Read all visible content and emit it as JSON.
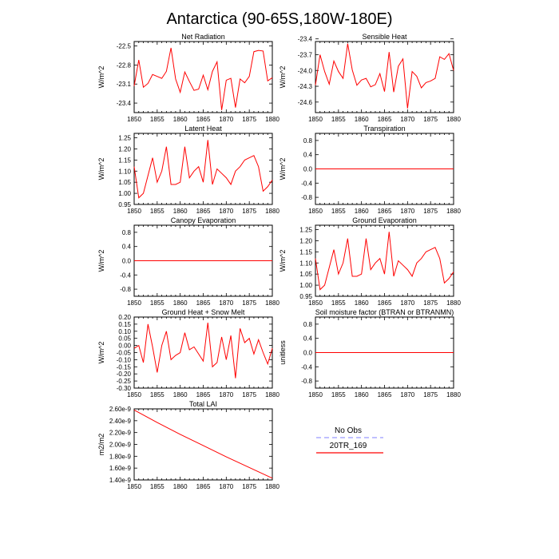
{
  "figure": {
    "title": "Antarctica (90-65S,180W-180E)"
  },
  "legend": {
    "entries": [
      {
        "label": "No Obs",
        "color": "#9a9aff",
        "style": "dashed"
      },
      {
        "label": "20TR_169",
        "color": "#ff0000",
        "style": "solid"
      }
    ]
  },
  "colors": {
    "series": "#ff0000",
    "axes": "#000000"
  },
  "chart_data": [
    {
      "type": "line",
      "title": "Net Radiation",
      "ylabel": "W/m^2",
      "xlim": [
        1850,
        1880
      ],
      "ylim": [
        -23.55,
        -22.43
      ],
      "xticks": [
        "1850",
        "1855",
        "1860",
        "1865",
        "1870",
        "1875",
        "1880"
      ],
      "yticks": [
        -22.5,
        -22.8,
        -23.1,
        -23.4
      ],
      "ytick_labels": [
        "-22.5",
        "-22.8",
        "-23.1",
        "-23.4"
      ],
      "x": [
        1850,
        1851,
        1852,
        1853,
        1854,
        1855,
        1856,
        1857,
        1858,
        1859,
        1860,
        1861,
        1862,
        1863,
        1864,
        1865,
        1866,
        1867,
        1868,
        1869,
        1870,
        1871,
        1872,
        1873,
        1874,
        1875,
        1876,
        1877,
        1878,
        1879,
        1880
      ],
      "series": [
        {
          "values": [
            -23.13,
            -22.72,
            -23.15,
            -23.09,
            -22.95,
            -22.98,
            -23.01,
            -22.9,
            -22.53,
            -23.02,
            -23.23,
            -22.91,
            -23.06,
            -23.2,
            -23.18,
            -22.96,
            -23.19,
            -22.9,
            -22.75,
            -23.51,
            -23.04,
            -23.01,
            -23.47,
            -23.02,
            -23.08,
            -22.98,
            -22.59,
            -22.57,
            -22.58,
            -23.05,
            -23.0
          ]
        }
      ]
    },
    {
      "type": "line",
      "title": "Sensible Heat",
      "ylabel": "W/m^2",
      "xlim": [
        1850,
        1880
      ],
      "ylim": [
        -24.8,
        -23.45
      ],
      "xticks": [
        "1850",
        "1855",
        "1860",
        "1865",
        "1870",
        "1875",
        "1880"
      ],
      "yticks": [
        -23.4,
        -23.7,
        -24.0,
        -24.3,
        -24.6
      ],
      "ytick_labels": [
        "-23.4",
        "-23.7",
        "-24.0",
        "-24.3",
        "-24.6"
      ],
      "x": [
        1850,
        1851,
        1852,
        1853,
        1854,
        1855,
        1856,
        1857,
        1858,
        1859,
        1860,
        1861,
        1862,
        1863,
        1864,
        1865,
        1866,
        1867,
        1868,
        1869,
        1870,
        1871,
        1872,
        1873,
        1874,
        1875,
        1876,
        1877,
        1878,
        1879,
        1880
      ],
      "series": [
        {
          "values": [
            -24.28,
            -23.7,
            -24.02,
            -24.26,
            -23.82,
            -24.02,
            -24.15,
            -23.49,
            -23.99,
            -24.28,
            -24.18,
            -24.15,
            -24.31,
            -24.27,
            -24.06,
            -24.4,
            -23.65,
            -24.41,
            -23.92,
            -23.78,
            -24.72,
            -24.02,
            -24.11,
            -24.33,
            -24.23,
            -24.2,
            -24.15,
            -23.74,
            -23.79,
            -23.68,
            -24.0
          ]
        }
      ]
    },
    {
      "type": "line",
      "title": "Latent Heat",
      "ylabel": "W/m^2",
      "xlim": [
        1850,
        1880
      ],
      "ylim": [
        0.95,
        1.27
      ],
      "xticks": [
        "1850",
        "1855",
        "1860",
        "1865",
        "1870",
        "1875",
        "1880"
      ],
      "yticks": [
        0.95,
        1.0,
        1.05,
        1.1,
        1.15,
        1.2,
        1.25
      ],
      "ytick_labels": [
        "0.95",
        "1.00",
        "1.05",
        "1.10",
        "1.15",
        "1.20",
        "1.25"
      ],
      "x": [
        1850,
        1851,
        1852,
        1853,
        1854,
        1855,
        1856,
        1857,
        1858,
        1859,
        1860,
        1861,
        1862,
        1863,
        1864,
        1865,
        1866,
        1867,
        1868,
        1869,
        1870,
        1871,
        1872,
        1873,
        1874,
        1875,
        1876,
        1877,
        1878,
        1879,
        1880
      ],
      "series": [
        {
          "values": [
            1.12,
            0.98,
            1.0,
            1.08,
            1.16,
            1.05,
            1.1,
            1.21,
            1.04,
            1.04,
            1.05,
            1.21,
            1.07,
            1.1,
            1.12,
            1.05,
            1.24,
            1.04,
            1.11,
            1.09,
            1.07,
            1.04,
            1.1,
            1.12,
            1.15,
            1.16,
            1.17,
            1.12,
            1.01,
            1.03,
            1.06
          ]
        }
      ]
    },
    {
      "type": "line",
      "title": "Transpiration",
      "ylabel": "W/m^2",
      "xlim": [
        1850,
        1880
      ],
      "ylim": [
        -1.0,
        1.0
      ],
      "xticks": [
        "1850",
        "1855",
        "1860",
        "1865",
        "1870",
        "1875",
        "1880"
      ],
      "yticks": [
        0.8,
        0.4,
        0.0,
        -0.4,
        -0.8
      ],
      "ytick_labels": [
        "0.8",
        "0.4",
        "0.0",
        "-0.4",
        "-0.8"
      ],
      "x": [
        1850,
        1880
      ],
      "series": [
        {
          "values": [
            0.0,
            0.0
          ]
        }
      ]
    },
    {
      "type": "line",
      "title": "Canopy Evaporation",
      "ylabel": "W/m^2",
      "xlim": [
        1850,
        1880
      ],
      "ylim": [
        -1.0,
        1.0
      ],
      "xticks": [
        "1850",
        "1855",
        "1860",
        "1865",
        "1870",
        "1875",
        "1880"
      ],
      "yticks": [
        0.8,
        0.4,
        0.0,
        -0.4,
        -0.8
      ],
      "ytick_labels": [
        "0.8",
        "0.4",
        "0.0",
        "-0.4",
        "-0.8"
      ],
      "x": [
        1850,
        1880
      ],
      "series": [
        {
          "values": [
            0.0,
            0.0
          ]
        }
      ]
    },
    {
      "type": "line",
      "title": "Ground Evaporation",
      "ylabel": "W/m^2",
      "xlim": [
        1850,
        1880
      ],
      "ylim": [
        0.95,
        1.27
      ],
      "xticks": [
        "1850",
        "1855",
        "1860",
        "1865",
        "1870",
        "1875",
        "1880"
      ],
      "yticks": [
        0.95,
        1.0,
        1.05,
        1.1,
        1.15,
        1.2,
        1.25
      ],
      "ytick_labels": [
        "0.95",
        "1.00",
        "1.05",
        "1.10",
        "1.15",
        "1.20",
        "1.25"
      ],
      "x": [
        1850,
        1851,
        1852,
        1853,
        1854,
        1855,
        1856,
        1857,
        1858,
        1859,
        1860,
        1861,
        1862,
        1863,
        1864,
        1865,
        1866,
        1867,
        1868,
        1869,
        1870,
        1871,
        1872,
        1873,
        1874,
        1875,
        1876,
        1877,
        1878,
        1879,
        1880
      ],
      "series": [
        {
          "values": [
            1.12,
            0.98,
            1.0,
            1.08,
            1.16,
            1.05,
            1.1,
            1.21,
            1.04,
            1.04,
            1.05,
            1.21,
            1.07,
            1.1,
            1.12,
            1.05,
            1.24,
            1.04,
            1.11,
            1.09,
            1.07,
            1.04,
            1.1,
            1.12,
            1.15,
            1.16,
            1.17,
            1.12,
            1.01,
            1.03,
            1.06
          ]
        }
      ]
    },
    {
      "type": "line",
      "title": "Ground Heat + Snow Melt",
      "ylabel": "W/m^2",
      "xlim": [
        1850,
        1880
      ],
      "ylim": [
        -0.3,
        0.2
      ],
      "xticks": [
        "1850",
        "1855",
        "1860",
        "1865",
        "1870",
        "1875",
        "1880"
      ],
      "yticks": [
        0.2,
        0.15,
        0.1,
        0.05,
        0.0,
        -0.05,
        -0.1,
        -0.15,
        -0.2,
        -0.25,
        -0.3
      ],
      "ytick_labels": [
        "0.20",
        "0.15",
        "0.10",
        "0.05",
        "0.00",
        "-0.05",
        "-0.10",
        "-0.15",
        "-0.20",
        "-0.25",
        "-0.30"
      ],
      "x": [
        1850,
        1851,
        1852,
        1853,
        1854,
        1855,
        1856,
        1857,
        1858,
        1859,
        1860,
        1861,
        1862,
        1863,
        1864,
        1865,
        1866,
        1867,
        1868,
        1869,
        1870,
        1871,
        1872,
        1873,
        1874,
        1875,
        1876,
        1877,
        1878,
        1879,
        1880
      ],
      "series": [
        {
          "values": [
            -0.02,
            0.0,
            -0.12,
            0.15,
            -0.01,
            -0.19,
            0.0,
            0.1,
            -0.1,
            -0.07,
            -0.05,
            0.09,
            -0.03,
            -0.01,
            -0.06,
            -0.11,
            0.16,
            -0.15,
            -0.12,
            0.06,
            -0.1,
            0.07,
            -0.23,
            0.12,
            0.02,
            0.05,
            -0.06,
            0.04,
            -0.05,
            -0.13,
            -0.02
          ]
        }
      ]
    },
    {
      "type": "line",
      "title": "Soil moisture factor (BTRAN or BTRANMN)",
      "ylabel": "unitless",
      "xlim": [
        1850,
        1880
      ],
      "ylim": [
        -1.0,
        1.0
      ],
      "xticks": [
        "1850",
        "1855",
        "1860",
        "1865",
        "1870",
        "1875",
        "1880"
      ],
      "yticks": [
        0.8,
        0.4,
        0.0,
        -0.4,
        -0.8
      ],
      "ytick_labels": [
        "0.8",
        "0.4",
        "0.0",
        "-0.4",
        "-0.8"
      ],
      "x": [
        1850,
        1880
      ],
      "series": [
        {
          "values": [
            0.0,
            0.0
          ]
        }
      ]
    },
    {
      "type": "line",
      "title": "Total LAI",
      "ylabel": "m2/m2",
      "xlim": [
        1850,
        1880
      ],
      "ylim": [
        1.4e-09,
        2.6e-09
      ],
      "xticks": [
        "1850",
        "1855",
        "1860",
        "1865",
        "1870",
        "1875",
        "1880"
      ],
      "yticks": [
        2.6e-09,
        2.4e-09,
        2.2e-09,
        2e-09,
        1.8e-09,
        1.6e-09,
        1.4e-09
      ],
      "ytick_labels": [
        "2.60e-9",
        "2.40e-9",
        "2.20e-9",
        "2.00e-9",
        "1.80e-9",
        "1.60e-9",
        "1.40e-9"
      ],
      "x": [
        1850,
        1855,
        1860,
        1865,
        1870,
        1875,
        1880
      ],
      "series": [
        {
          "values": [
            2.58e-09,
            2.37e-09,
            2.17e-09,
            1.98e-09,
            1.79e-09,
            1.61e-09,
            1.43e-09
          ]
        }
      ]
    }
  ]
}
